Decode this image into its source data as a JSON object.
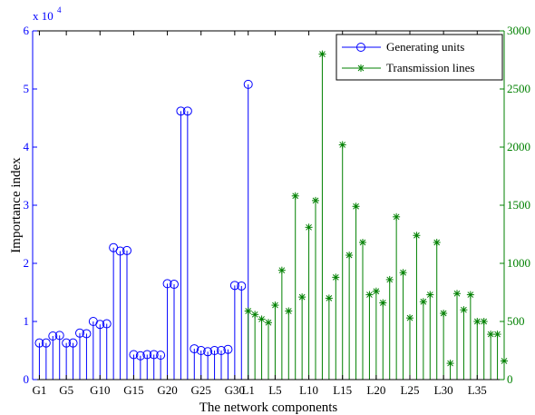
{
  "chart_data": {
    "type": "stem",
    "xlabel": "The network components",
    "y_left": {
      "label": "Importance index",
      "exponent_label": "x 10",
      "exponent_value": "4",
      "ylim": [
        0,
        60000
      ],
      "ticks": [
        0,
        10000,
        20000,
        30000,
        40000,
        50000,
        60000
      ],
      "tick_labels": [
        "0",
        "1",
        "2",
        "3",
        "4",
        "5",
        "6"
      ],
      "color": "#0000ff"
    },
    "y_right": {
      "ylim": [
        0,
        3000
      ],
      "ticks": [
        0,
        500,
        1000,
        1500,
        2000,
        2500,
        3000
      ],
      "tick_labels": [
        "0",
        "500",
        "1000",
        "1500",
        "2000",
        "2500",
        "3000"
      ],
      "color": "#008000"
    },
    "x_tick_labels": [
      "G1",
      "G5",
      "G10",
      "G15",
      "G20",
      "G25",
      "G30",
      "L1",
      "L5",
      "L10",
      "L15",
      "L20",
      "L25",
      "L30",
      "L35"
    ],
    "x_tick_positions": [
      1,
      5,
      10,
      15,
      20,
      25,
      30,
      32,
      36,
      41,
      46,
      51,
      56,
      61,
      66
    ],
    "xlim": [
      0,
      70
    ],
    "legend_position": "top-right",
    "series": [
      {
        "name": "Generating units",
        "axis": "left",
        "color": "#0000ff",
        "marker": "circle",
        "x_start": 1,
        "values": [
          6300,
          6300,
          7500,
          7600,
          6300,
          6300,
          8000,
          7900,
          10000,
          9500,
          9600,
          22700,
          22100,
          22200,
          4300,
          4100,
          4300,
          4300,
          4200,
          16500,
          16400,
          46200,
          46200,
          5300,
          5000,
          4800,
          5000,
          5000,
          5200,
          16200,
          16100,
          50800
        ]
      },
      {
        "name": "Transmission lines",
        "axis": "right",
        "color": "#008000",
        "marker": "star",
        "x_start": 32,
        "values": [
          590,
          560,
          520,
          490,
          640,
          940,
          590,
          1580,
          710,
          1310,
          1540,
          2800,
          700,
          880,
          2020,
          1070,
          1490,
          1180,
          730,
          760,
          660,
          860,
          1400,
          920,
          530,
          1240,
          670,
          730,
          1180,
          570,
          140,
          740,
          600,
          730,
          500,
          500,
          390,
          390,
          160
        ]
      }
    ]
  }
}
